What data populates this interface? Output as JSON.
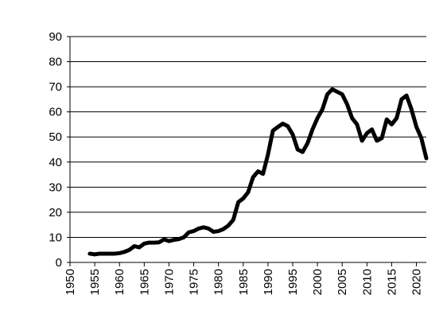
{
  "chart_data": {
    "type": "line",
    "title": "",
    "xlabel": "",
    "ylabel": "",
    "xlim": [
      1950,
      2022
    ],
    "ylim": [
      0,
      90
    ],
    "y_ticks": [
      0,
      10,
      20,
      30,
      40,
      50,
      60,
      70,
      80,
      90
    ],
    "x_ticks": [
      1950,
      1955,
      1960,
      1965,
      1970,
      1975,
      1980,
      1985,
      1990,
      1995,
      2000,
      2005,
      2010,
      2015,
      2020
    ],
    "grid": "horizontal",
    "legend": "none",
    "line_color": "#000000",
    "grid_color": "#000000",
    "series": [
      {
        "x": [
          1954,
          1955,
          1956,
          1957,
          1958,
          1959,
          1960,
          1961,
          1962,
          1963,
          1964,
          1965,
          1966,
          1967,
          1968,
          1969,
          1970,
          1971,
          1972,
          1973,
          1974,
          1975,
          1976,
          1977,
          1978,
          1979,
          1980,
          1981,
          1982,
          1983,
          1984,
          1985,
          1986,
          1987,
          1988,
          1989,
          1990,
          1991,
          1992,
          1993,
          1994,
          1995,
          1996,
          1997,
          1998,
          1999,
          2000,
          2001,
          2002,
          2003,
          2004,
          2005,
          2006,
          2007,
          2008,
          2009,
          2010,
          2011,
          2012,
          2013,
          2014,
          2015,
          2016,
          2017,
          2018,
          2019,
          2020,
          2021,
          2022
        ],
        "y": [
          3.5,
          3.2,
          3.5,
          3.5,
          3.5,
          3.5,
          3.7,
          4.2,
          5.0,
          6.5,
          6.0,
          7.5,
          7.9,
          7.9,
          8.0,
          9.2,
          8.5,
          9.0,
          9.3,
          10.0,
          12.0,
          12.5,
          13.5,
          14.0,
          13.5,
          12.2,
          12.5,
          13.3,
          14.7,
          17.0,
          24.0,
          25.5,
          28.0,
          34.0,
          36.3,
          35.3,
          43.0,
          52.5,
          54.0,
          55.3,
          54.3,
          51.0,
          45.0,
          44.0,
          47.5,
          53.0,
          57.5,
          61.0,
          67.0,
          69.0,
          68.0,
          67.0,
          63.0,
          57.5,
          55.0,
          48.5,
          51.5,
          53.0,
          48.5,
          49.5,
          57.0,
          55.0,
          57.5,
          65.0,
          66.5,
          61.0,
          54.0,
          49.5,
          41.5
        ]
      }
    ]
  }
}
